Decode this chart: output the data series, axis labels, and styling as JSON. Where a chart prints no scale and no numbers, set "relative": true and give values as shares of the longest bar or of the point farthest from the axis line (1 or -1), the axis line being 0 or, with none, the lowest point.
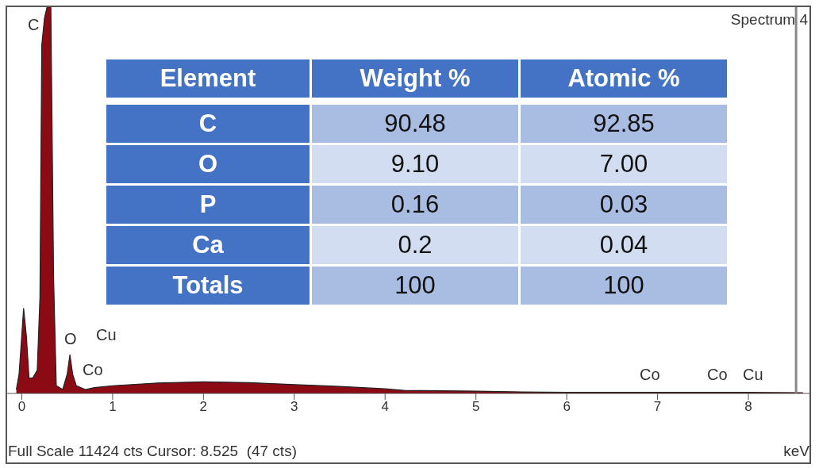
{
  "chart_data": [
    {
      "type": "area",
      "title": "Spectrum 4",
      "xlabel": "keV",
      "relative": true,
      "color": "#8b0a14",
      "x": [
        -0.06,
        -0.03,
        0.0,
        0.02,
        0.05,
        0.08,
        0.12,
        0.17,
        0.2,
        0.22,
        0.25,
        0.28,
        0.32,
        0.35,
        0.38,
        0.45,
        0.5,
        0.53,
        0.56,
        0.6,
        0.7,
        0.8,
        1.0,
        1.5,
        2.0,
        2.5,
        3.0,
        3.5,
        4.0,
        4.2,
        5.0,
        5.5,
        6.0,
        7.0,
        8.0,
        8.6
      ],
      "values": [
        0.01,
        0.05,
        0.15,
        0.22,
        0.15,
        0.04,
        0.04,
        0.06,
        0.25,
        0.9,
        0.97,
        1,
        1,
        0.3,
        0.02,
        0.01,
        0.05,
        0.1,
        0.05,
        0.02,
        0.01,
        0.015,
        0.02,
        0.027,
        0.03,
        0.028,
        0.023,
        0.018,
        0.012,
        0.008,
        0.006,
        0.004,
        0.003,
        0.003,
        0.003,
        0.002
      ],
      "xlim": [
        -0.17,
        8.69
      ],
      "xticks": [
        0,
        1,
        2,
        3,
        4,
        5,
        6,
        7,
        8
      ],
      "ref_lines": [
        {
          "axis": "x",
          "value": 8.525
        }
      ],
      "annotations": [
        "C",
        "O",
        "Cu",
        "Co",
        "Co",
        "Co",
        "Cu",
        "Full Scale 11424 cts Cursor: 8.525  (47 cts)"
      ]
    },
    {
      "type": "other",
      "ylabel": "Element",
      "categories": [
        "Weight %",
        "Atomic %"
      ],
      "y_categories": [
        "C",
        "O",
        "P",
        "Ca",
        "Totals"
      ],
      "cell_labels": [
        [
          "90.48",
          "92.85"
        ],
        [
          "9.10",
          "7.00"
        ],
        [
          "0.16",
          "0.03"
        ],
        [
          "0.2",
          "0.04"
        ],
        [
          "100",
          "100"
        ]
      ]
    }
  ]
}
